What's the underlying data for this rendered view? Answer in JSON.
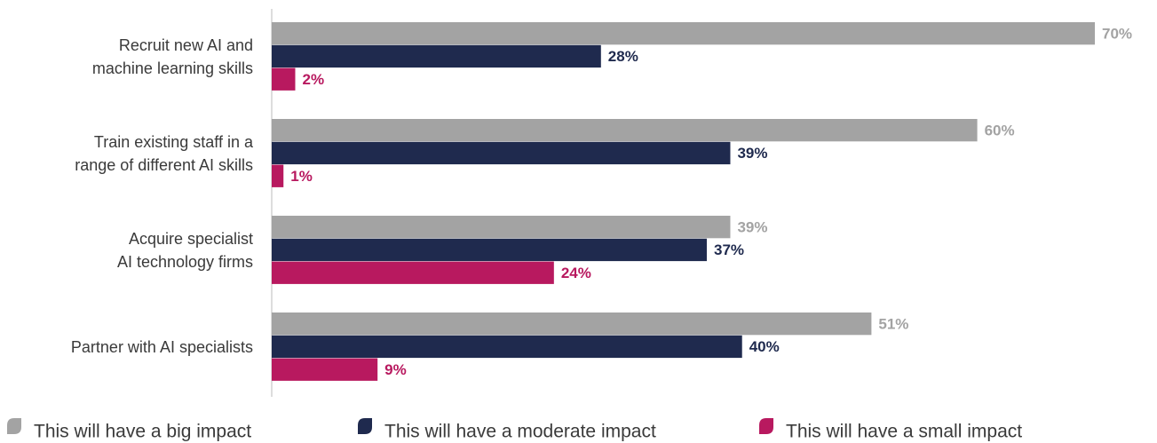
{
  "chart_data": {
    "type": "hbar",
    "categories": [
      "Recruit new AI and\nmachine learning skills",
      "Train existing staff in a\nrange of different AI skills",
      "Acquire specialist\nAI technology firms",
      "Partner with AI specialists"
    ],
    "series": [
      {
        "name": "This will have a big impact",
        "color": "#a3a3a3",
        "values": [
          70,
          60,
          39,
          51
        ],
        "value_labels": [
          "70%",
          "60%",
          "39%",
          "51%"
        ]
      },
      {
        "name": "This will have a moderate impact",
        "color": "#1f2a4e",
        "values": [
          28,
          39,
          37,
          40
        ],
        "value_labels": [
          "28%",
          "39%",
          "37%",
          "40%"
        ]
      },
      {
        "name": "This will have a small impact",
        "color": "#b8195f",
        "values": [
          2,
          1,
          24,
          9
        ],
        "value_labels": [
          "2%",
          "1%",
          "24%",
          "9%"
        ]
      }
    ],
    "xlim": [
      0,
      70
    ]
  }
}
